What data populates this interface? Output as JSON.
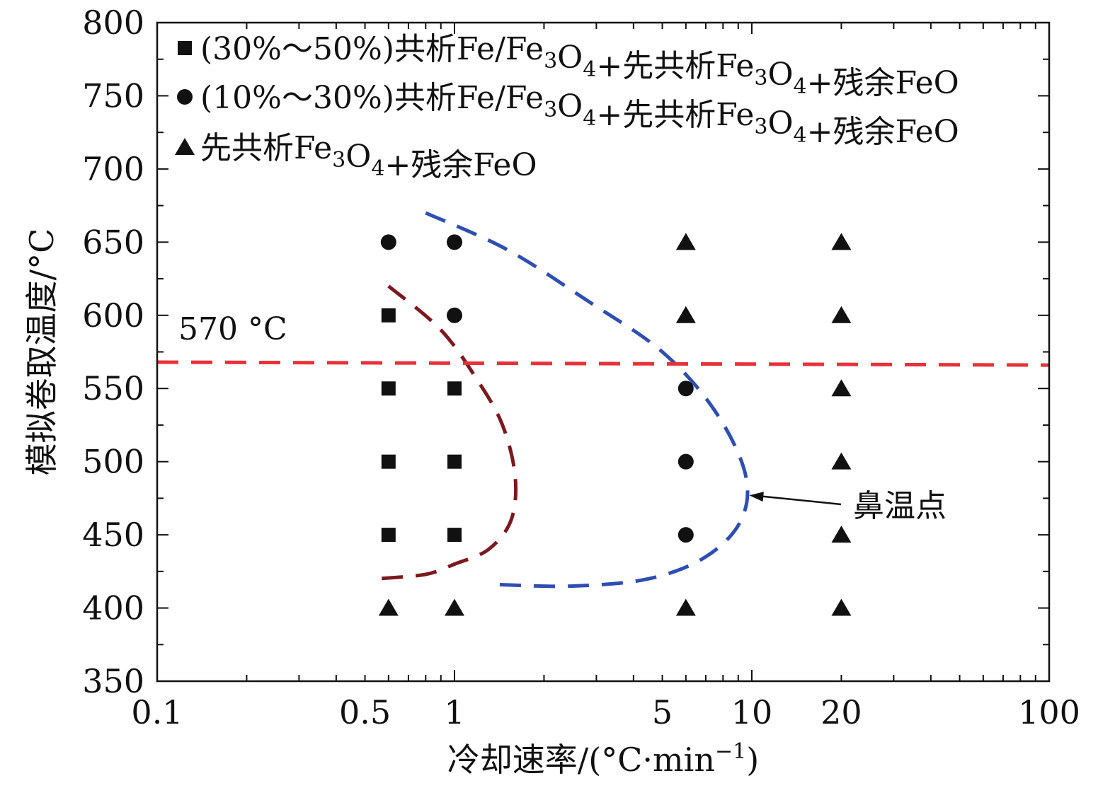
{
  "chart_data": {
    "type": "scatter",
    "title": "",
    "xlabel": "冷却速率/(°C·min",
    "xlabel_sup": "−1",
    "xlabel_close": ")",
    "ylabel": "模拟卷取温度/°C",
    "xscale": "log",
    "xlim": [
      0.1,
      100
    ],
    "ylim": [
      350,
      800
    ],
    "xticks": [
      0.1,
      0.5,
      1,
      5,
      10,
      20,
      100
    ],
    "xtick_labels": [
      "0.1",
      "0.5",
      "1",
      "5",
      "10",
      "20",
      "100"
    ],
    "yticks": [
      350,
      400,
      450,
      500,
      550,
      600,
      650,
      700,
      750,
      800
    ],
    "ytick_labels": [
      "350",
      "400",
      "450",
      "500",
      "550",
      "600",
      "650",
      "700",
      "750",
      "800"
    ],
    "grid": false,
    "legend_position": "top-left",
    "series": [
      {
        "name": "(30%～50%)共析Fe/Fe3O4+先共析Fe3O4+残余FeO",
        "marker": "square",
        "points": [
          [
            0.6,
            600
          ],
          [
            0.6,
            550
          ],
          [
            0.6,
            500
          ],
          [
            0.6,
            450
          ],
          [
            1,
            550
          ],
          [
            1,
            500
          ],
          [
            1,
            450
          ]
        ]
      },
      {
        "name": "(10%～30%)共析Fe/Fe3O4+先共析Fe3O4+残余FeO",
        "marker": "circle",
        "points": [
          [
            0.6,
            650
          ],
          [
            1,
            650
          ],
          [
            1,
            600
          ],
          [
            6,
            550
          ],
          [
            6,
            500
          ],
          [
            6,
            450
          ]
        ]
      },
      {
        "name": "先共析Fe3O4+残余FeO",
        "marker": "triangle",
        "points": [
          [
            0.6,
            400
          ],
          [
            1,
            400
          ],
          [
            6,
            650
          ],
          [
            6,
            600
          ],
          [
            6,
            400
          ],
          [
            20,
            650
          ],
          [
            20,
            600
          ],
          [
            20,
            550
          ],
          [
            20,
            500
          ],
          [
            20,
            450
          ],
          [
            20,
            400
          ]
        ]
      }
    ],
    "legend_entries": [
      {
        "prefix": "(30%～50%)共析Fe/Fe",
        "s1": "3",
        "m1": "O",
        "s2": "4",
        "m2": "+先共析Fe",
        "s3": "3",
        "m3": "O",
        "s4": "4",
        "suffix": "+残余FeO"
      },
      {
        "prefix": "(10%～30%)共析Fe/Fe",
        "s1": "3",
        "m1": "O",
        "s2": "4",
        "m2": "+先共析Fe",
        "s3": "3",
        "m3": "O",
        "s4": "4",
        "suffix": "+残余FeO"
      },
      {
        "prefix": "先共析Fe",
        "s1": "3",
        "m1": "O",
        "s2": "4",
        "suffix": "+残余FeO"
      }
    ],
    "curves": [
      {
        "id": "inner-boundary",
        "color": "#7a1a1f",
        "points": [
          [
            0.6,
            620
          ],
          [
            0.9,
            590
          ],
          [
            1.2,
            555
          ],
          [
            1.45,
            525
          ],
          [
            1.6,
            490
          ],
          [
            1.55,
            460
          ],
          [
            1.3,
            440
          ],
          [
            1.0,
            430
          ],
          [
            0.8,
            423
          ],
          [
            0.55,
            420
          ]
        ]
      },
      {
        "id": "outer-boundary",
        "color": "#2f4fb0",
        "points": [
          [
            0.8,
            670
          ],
          [
            1.5,
            645
          ],
          [
            2.8,
            610
          ],
          [
            5,
            575
          ],
          [
            7.5,
            535
          ],
          [
            9.5,
            492
          ],
          [
            9.2,
            460
          ],
          [
            7,
            435
          ],
          [
            4.5,
            420
          ],
          [
            2.5,
            415
          ],
          [
            1.4,
            416
          ]
        ]
      },
      {
        "id": "eutectoid-line",
        "color": "#e8313a",
        "points": [
          [
            0.1,
            568
          ],
          [
            100,
            566
          ]
        ]
      }
    ],
    "annotations": {
      "eutectoid_label": "570 °C",
      "nose_label": "鼻温点",
      "nose_arrow_target": [
        9.8,
        477
      ]
    }
  }
}
